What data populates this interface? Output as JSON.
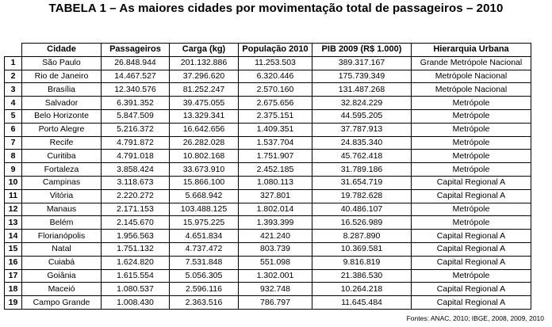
{
  "title": "TABELA 1 – As maiores cidades por movimentação total de passageiros – 2010",
  "table": {
    "headers": [
      "",
      "Cidade",
      "Passageiros",
      "Carga (kg)",
      "População 2010",
      "PIB 2009 (R$ 1.000)",
      "Hierarquia Urbana"
    ],
    "rows": [
      [
        "1",
        "São Paulo",
        "26.848.944",
        "201.132.886",
        "11.253.503",
        "389.317.167",
        "Grande Metrópole Nacional"
      ],
      [
        "2",
        "Rio de Janeiro",
        "14.467.527",
        "37.296.620",
        "6.320.446",
        "175.739.349",
        "Metrópole Nacional"
      ],
      [
        "3",
        "Brasília",
        "12.340.576",
        "81.252.247",
        "2.570.160",
        "131.487.268",
        "Metrópole Nacional"
      ],
      [
        "4",
        "Salvador",
        "6.391.352",
        "39.475.055",
        "2.675.656",
        "32.824.229",
        "Metrópole"
      ],
      [
        "5",
        "Belo Horizonte",
        "5.847.509",
        "13.329.341",
        "2.375.151",
        "44.595.205",
        "Metrópole"
      ],
      [
        "6",
        "Porto Alegre",
        "5.216.372",
        "16.642.656",
        "1.409.351",
        "37.787.913",
        "Metrópole"
      ],
      [
        "7",
        "Recife",
        "4.791.872",
        "26.282.028",
        "1.537.704",
        "24.835.340",
        "Metrópole"
      ],
      [
        "8",
        "Curitiba",
        "4.791.018",
        "10.802.168",
        "1.751.907",
        "45.762.418",
        "Metrópole"
      ],
      [
        "9",
        "Fortaleza",
        "3.858.424",
        "33.673.910",
        "2.452.185",
        "31.789.186",
        "Metrópole"
      ],
      [
        "10",
        "Campinas",
        "3.118.673",
        "15.866.100",
        "1.080.113",
        "31.654.719",
        "Capital Regional A"
      ],
      [
        "11",
        "Vitória",
        "2.220.272",
        "5.668.942",
        "327.801",
        "19.782.628",
        "Capital Regional A"
      ],
      [
        "12",
        "Manaus",
        "2.171.153",
        "103.488.125",
        "1.802.014",
        "40.486.107",
        "Metrópole"
      ],
      [
        "13",
        "Belém",
        "2.145.670",
        "15.975.225",
        "1.393.399",
        "16.526.989",
        "Metrópole"
      ],
      [
        "14",
        "Florianópolis",
        "1.956.563",
        "4.651.834",
        "421.240",
        "8.287.890",
        "Capital Regional A"
      ],
      [
        "15",
        "Natal",
        "1.751.132",
        "4.737.472",
        "803.739",
        "10.369.581",
        "Capital Regional A"
      ],
      [
        "16",
        "Cuiabá",
        "1.624.820",
        "7.531.848",
        "551.098",
        "9.816.819",
        "Capital Regional A"
      ],
      [
        "17",
        "Goiânia",
        "1.615.554",
        "5.056.305",
        "1.302.001",
        "21.386.530",
        "Metrópole"
      ],
      [
        "18",
        "Maceió",
        "1.080.537",
        "2.596.116",
        "932.748",
        "10.264.218",
        "Capital Regional A"
      ],
      [
        "19",
        "Campo Grande",
        "1.008.430",
        "2.363.516",
        "786.797",
        "11.645.484",
        "Capital Regional A"
      ]
    ]
  },
  "source": "Fontes: ANAC, 2010; IBGE, 2008, 2009, 2010"
}
